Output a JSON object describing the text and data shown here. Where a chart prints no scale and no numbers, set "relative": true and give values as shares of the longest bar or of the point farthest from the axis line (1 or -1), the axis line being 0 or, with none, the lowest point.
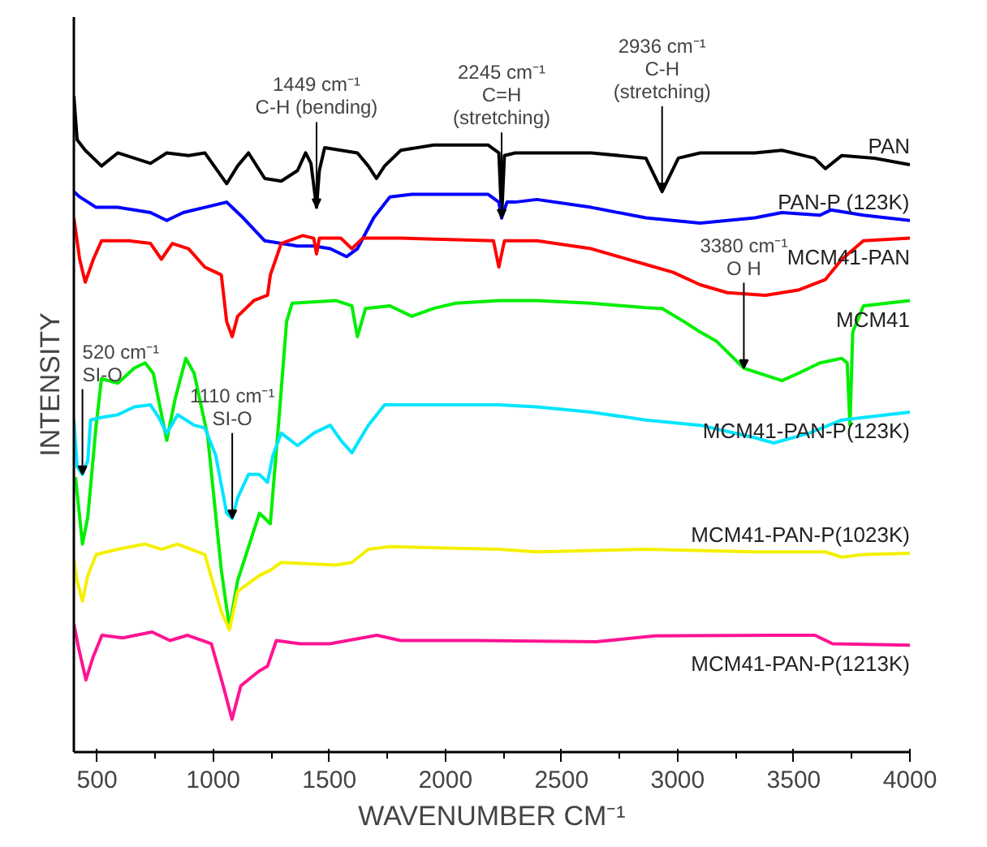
{
  "chart_data": {
    "type": "line",
    "relative": true,
    "xlabel": "WAVENUMBER CM⁻¹",
    "ylabel": "INTENSITY",
    "xlim": [
      400,
      4000
    ],
    "xticks": [
      500,
      1000,
      1500,
      2000,
      2500,
      3000,
      3500,
      4000
    ],
    "grid": false,
    "legend": false,
    "marker": "none",
    "line_style": "solid",
    "series": [
      {
        "name": "PAN",
        "color": "#000000",
        "x": [
          400,
          414,
          449,
          519,
          589,
          660,
          730,
          800,
          894,
          964,
          1058,
          1105,
          1152,
          1222,
          1293,
          1363,
          1398,
          1421,
          1445,
          1457,
          1480,
          1550,
          1621,
          1668,
          1703,
          1738,
          1808,
          1949,
          2183,
          2230,
          2242,
          2254,
          2300,
          2394,
          2628,
          2863,
          2933,
          3003,
          3097,
          3332,
          3449,
          3589,
          3636,
          3707,
          3847,
          4000
        ],
        "values": [
          1.0,
          0.933,
          0.917,
          0.893,
          0.913,
          0.905,
          0.897,
          0.913,
          0.909,
          0.913,
          0.866,
          0.893,
          0.913,
          0.874,
          0.87,
          0.886,
          0.913,
          0.897,
          0.83,
          0.886,
          0.921,
          0.917,
          0.913,
          0.893,
          0.874,
          0.893,
          0.917,
          0.925,
          0.925,
          0.913,
          0.814,
          0.909,
          0.913,
          0.913,
          0.913,
          0.905,
          0.854,
          0.905,
          0.913,
          0.913,
          0.917,
          0.905,
          0.889,
          0.909,
          0.905,
          0.895
        ]
      },
      {
        "name": "PAN-P (123K)",
        "color": "#0000ff",
        "x": [
          400,
          425,
          496,
          589,
          660,
          730,
          800,
          871,
          964,
          1058,
          1129,
          1222,
          1293,
          1363,
          1433,
          1504,
          1574,
          1621,
          1691,
          1761,
          1855,
          1996,
          2183,
          2230,
          2242,
          2265,
          2300,
          2394,
          2628,
          2863,
          3097,
          3332,
          3449,
          3613,
          3660,
          3800,
          4000
        ],
        "values": [
          0.854,
          0.846,
          0.83,
          0.83,
          0.826,
          0.822,
          0.81,
          0.822,
          0.83,
          0.838,
          0.814,
          0.779,
          0.775,
          0.771,
          0.771,
          0.767,
          0.755,
          0.767,
          0.814,
          0.846,
          0.85,
          0.85,
          0.85,
          0.838,
          0.814,
          0.838,
          0.838,
          0.842,
          0.83,
          0.814,
          0.806,
          0.814,
          0.822,
          0.818,
          0.826,
          0.818,
          0.81
        ]
      },
      {
        "name": "MCM41-PAN",
        "color": "#ff0000",
        "x": [
          400,
          425,
          449,
          484,
          519,
          636,
          730,
          777,
          824,
          894,
          964,
          1035,
          1058,
          1082,
          1105,
          1175,
          1234,
          1246,
          1293,
          1386,
          1433,
          1445,
          1457,
          1550,
          1597,
          1644,
          1808,
          2207,
          2230,
          2254,
          2300,
          2394,
          2628,
          2863,
          2980,
          3097,
          3214,
          3378,
          3519,
          3636,
          3707,
          3800,
          4000
        ],
        "values": [
          0.814,
          0.751,
          0.716,
          0.751,
          0.779,
          0.779,
          0.775,
          0.751,
          0.775,
          0.767,
          0.739,
          0.727,
          0.656,
          0.633,
          0.664,
          0.688,
          0.696,
          0.727,
          0.775,
          0.787,
          0.783,
          0.759,
          0.783,
          0.783,
          0.767,
          0.783,
          0.783,
          0.779,
          0.739,
          0.779,
          0.779,
          0.779,
          0.767,
          0.743,
          0.731,
          0.712,
          0.7,
          0.696,
          0.704,
          0.72,
          0.751,
          0.779,
          0.783
        ]
      },
      {
        "name": "MCM41",
        "color": "#00ee00",
        "x": [
          407,
          437,
          460,
          496,
          519,
          589,
          660,
          707,
          742,
          800,
          836,
          882,
          918,
          976,
          1035,
          1070,
          1105,
          1199,
          1246,
          1281,
          1316,
          1340,
          1527,
          1597,
          1621,
          1656,
          1761,
          1855,
          1949,
          2043,
          2230,
          2394,
          2628,
          2863,
          2933,
          3027,
          3097,
          3167,
          3285,
          3449,
          3519,
          3613,
          3707,
          3730,
          3742,
          3754,
          3800,
          4000
        ],
        "values": [
          0.419,
          0.317,
          0.358,
          0.498,
          0.569,
          0.562,
          0.585,
          0.593,
          0.577,
          0.475,
          0.538,
          0.6,
          0.577,
          0.482,
          0.277,
          0.19,
          0.261,
          0.364,
          0.348,
          0.498,
          0.656,
          0.684,
          0.688,
          0.68,
          0.633,
          0.676,
          0.68,
          0.664,
          0.676,
          0.684,
          0.688,
          0.688,
          0.684,
          0.677,
          0.676,
          0.656,
          0.64,
          0.626,
          0.585,
          0.566,
          0.577,
          0.593,
          0.6,
          0.593,
          0.498,
          0.64,
          0.68,
          0.688
        ]
      },
      {
        "name": "MCM41-PAN-P(123K)",
        "color": "#00e5ff",
        "x": [
          400,
          414,
          437,
          460,
          472,
          519,
          589,
          660,
          730,
          765,
          800,
          847,
          918,
          964,
          1011,
          1058,
          1082,
          1105,
          1152,
          1199,
          1234,
          1257,
          1293,
          1363,
          1433,
          1504,
          1550,
          1597,
          1668,
          1738,
          1996,
          2230,
          2394,
          2628,
          2863,
          3097,
          3332,
          3414,
          3566,
          3707,
          4000
        ],
        "values": [
          0.506,
          0.435,
          0.423,
          0.444,
          0.506,
          0.51,
          0.514,
          0.526,
          0.529,
          0.51,
          0.486,
          0.514,
          0.498,
          0.494,
          0.452,
          0.364,
          0.356,
          0.387,
          0.423,
          0.423,
          0.411,
          0.452,
          0.486,
          0.467,
          0.486,
          0.498,
          0.475,
          0.456,
          0.498,
          0.529,
          0.529,
          0.529,
          0.526,
          0.518,
          0.506,
          0.498,
          0.479,
          0.471,
          0.486,
          0.506,
          0.518
        ]
      },
      {
        "name": "MCM41-PAN-P(1023K)",
        "color": "#f5f000",
        "x": [
          400,
          414,
          437,
          460,
          496,
          589,
          707,
          777,
          847,
          964,
          1035,
          1070,
          1105,
          1199,
          1246,
          1293,
          1527,
          1597,
          1668,
          1761,
          2230,
          2394,
          2863,
          3332,
          3636,
          3707,
          3800,
          4000
        ],
        "values": [
          0.293,
          0.261,
          0.23,
          0.269,
          0.301,
          0.309,
          0.317,
          0.309,
          0.317,
          0.301,
          0.214,
          0.186,
          0.245,
          0.269,
          0.277,
          0.289,
          0.285,
          0.289,
          0.309,
          0.313,
          0.309,
          0.305,
          0.309,
          0.305,
          0.305,
          0.297,
          0.301,
          0.303
        ]
      },
      {
        "name": "MCM41-PAN-P(1213K)",
        "color": "#ff1493",
        "x": [
          400,
          419,
          452,
          482,
          521,
          610,
          737,
          814,
          890,
          992,
          1043,
          1081,
          1119,
          1196,
          1234,
          1272,
          1374,
          1502,
          1705,
          1807,
          2139,
          2648,
          2903,
          3413,
          3591,
          3667,
          4000
        ],
        "values": [
          0.195,
          0.161,
          0.11,
          0.144,
          0.178,
          0.174,
          0.183,
          0.17,
          0.178,
          0.165,
          0.101,
          0.05,
          0.101,
          0.123,
          0.131,
          0.17,
          0.165,
          0.165,
          0.178,
          0.17,
          0.17,
          0.168,
          0.177,
          0.178,
          0.178,
          0.165,
          0.163
        ]
      }
    ],
    "annotations": [
      {
        "text": "1449 cm⁻¹\nC-H (bending)",
        "x": 1445,
        "y": 0.83
      },
      {
        "text": "2245 cm⁻¹\nC=H\n(stretching)",
        "x": 2242,
        "y": 0.814
      },
      {
        "text": "2936 cm⁻¹\nC-H\n(stretching)",
        "x": 2933,
        "y": 0.854
      },
      {
        "text": "3380 cm⁻¹\nO H",
        "x": 3285,
        "y": 0.585
      },
      {
        "text": "520 cm⁻¹\nSI-O",
        "x": 437,
        "y": 0.423
      },
      {
        "text": "1110 cm⁻¹\nSI-O",
        "x": 1082,
        "y": 0.356
      }
    ]
  }
}
